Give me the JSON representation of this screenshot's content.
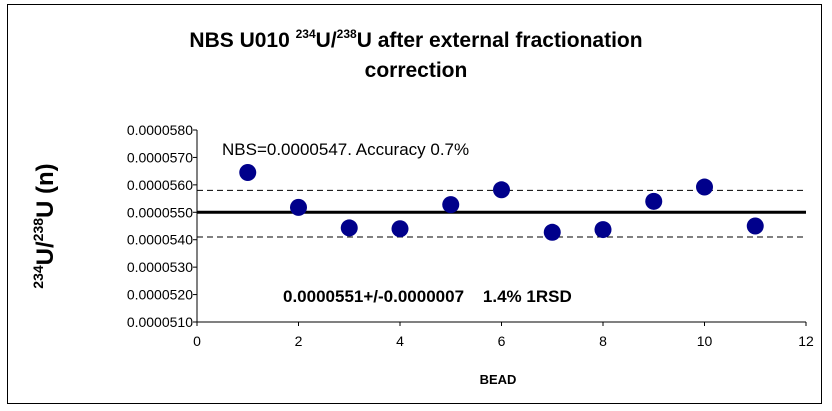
{
  "chart_data": {
    "type": "scatter",
    "title_line1_prefix": "NBS U010 ",
    "title_sup1": "234",
    "title_mid": "U/",
    "title_sup2": "238",
    "title_line1_suffix": "U after external fractionation",
    "title_line2": "correction",
    "ylabel_sup1": "234",
    "ylabel_mid": "U/",
    "ylabel_sup2": "238",
    "ylabel_suffix": "U (n)",
    "xlabel": "BEAD",
    "xlim": [
      0,
      12
    ],
    "ylim": [
      5.1e-05,
      5.8e-05
    ],
    "x_ticks": [
      "0",
      "2",
      "4",
      "6",
      "8",
      "10",
      "12"
    ],
    "y_ticks": [
      "0.0000580",
      "0.0000570",
      "0.0000560",
      "0.0000550",
      "0.0000540",
      "0.0000530",
      "0.0000520",
      "0.0000510"
    ],
    "points": [
      {
        "x": 1,
        "y": 5.645e-05
      },
      {
        "x": 2,
        "y": 5.518e-05
      },
      {
        "x": 3,
        "y": 5.443e-05
      },
      {
        "x": 4,
        "y": 5.44e-05
      },
      {
        "x": 5,
        "y": 5.528e-05
      },
      {
        "x": 6,
        "y": 5.582e-05
      },
      {
        "x": 7,
        "y": 5.427e-05
      },
      {
        "x": 8,
        "y": 5.437e-05
      },
      {
        "x": 9,
        "y": 5.54e-05
      },
      {
        "x": 10,
        "y": 5.592e-05
      },
      {
        "x": 11,
        "y": 5.45e-05
      }
    ],
    "mean_line": 5.5e-05,
    "upper_line": 5.58e-05,
    "lower_line": 5.41e-05,
    "marker_color": "#00008b",
    "annotation_top": "NBS=0.0000547. Accuracy 0.7%",
    "annotation_bottom": "0.0000551+/-0.0000007    1.4% 1RSD"
  }
}
